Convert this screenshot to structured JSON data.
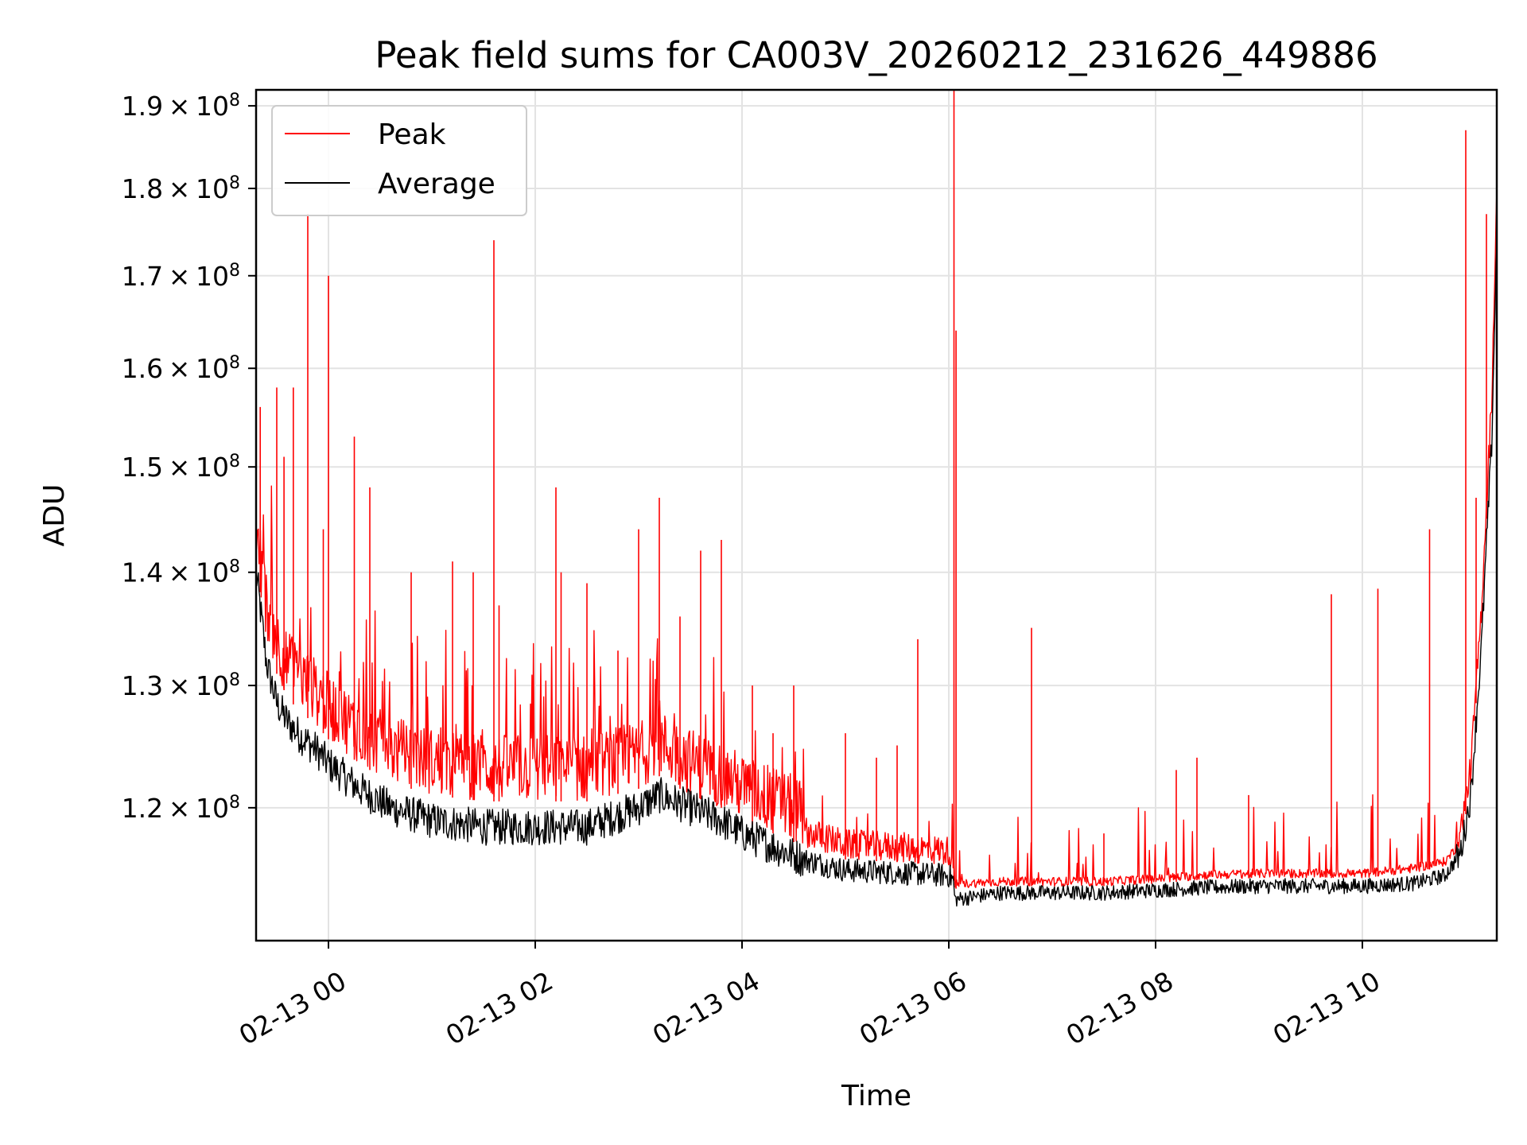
{
  "chart_data": {
    "type": "line",
    "title": "Peak field sums for CA003V_20260212_231626_449886",
    "xlabel": "Time",
    "ylabel": "ADU",
    "x_unit": "hours since 02-13 00:00",
    "xlim": [
      -0.7,
      11.3
    ],
    "ylim": [
      110000000.0,
      192000000.0
    ],
    "yscale": "log",
    "grid": true,
    "legend_position": "upper-left",
    "x_ticks": [
      {
        "value": 0,
        "label": "02-13 00"
      },
      {
        "value": 2,
        "label": "02-13 02"
      },
      {
        "value": 4,
        "label": "02-13 04"
      },
      {
        "value": 6,
        "label": "02-13 06"
      },
      {
        "value": 8,
        "label": "02-13 08"
      },
      {
        "value": 10,
        "label": "02-13 10"
      }
    ],
    "y_ticks": [
      {
        "value": 120000000.0,
        "mantissa": "1.2",
        "base": "10",
        "exp": "8"
      },
      {
        "value": 130000000.0,
        "mantissa": "1.3",
        "base": "10",
        "exp": "8"
      },
      {
        "value": 140000000.0,
        "mantissa": "1.4",
        "base": "10",
        "exp": "8"
      },
      {
        "value": 150000000.0,
        "mantissa": "1.5",
        "base": "10",
        "exp": "8"
      },
      {
        "value": 160000000.0,
        "mantissa": "1.6",
        "base": "10",
        "exp": "8"
      },
      {
        "value": 170000000.0,
        "mantissa": "1.7",
        "base": "10",
        "exp": "8"
      },
      {
        "value": 180000000.0,
        "mantissa": "1.8",
        "base": "10",
        "exp": "8"
      },
      {
        "value": 190000000.0,
        "mantissa": "1.9",
        "base": "10",
        "exp": "8"
      }
    ],
    "series": [
      {
        "name": "Peak",
        "color": "#ff0000",
        "baseline_x": [
          -0.7,
          -0.6,
          -0.5,
          -0.4,
          -0.3,
          -0.1,
          0.0,
          0.3,
          0.6,
          1.0,
          1.5,
          2.0,
          2.5,
          3.0,
          3.2,
          3.5,
          3.8,
          4.0,
          4.3,
          4.6,
          5.0,
          5.5,
          6.0,
          6.04,
          6.06,
          6.5,
          7.0,
          7.5,
          8.0,
          8.5,
          9.0,
          9.5,
          10.0,
          10.5,
          10.8,
          10.95,
          11.05,
          11.15,
          11.25,
          11.3
        ],
        "baseline_y": [
          141000000.0,
          134000000.0,
          131000000.0,
          129000000.0,
          128000000.0,
          126500000.0,
          125500000.0,
          123500000.0,
          122000000.0,
          121000000.0,
          120500000.0,
          120500000.0,
          120500000.0,
          121500000.0,
          122500000.0,
          121000000.0,
          120000000.0,
          119000000.0,
          118000000.0,
          117000000.0,
          116000000.0,
          115800000.0,
          115500000.0,
          115000000.0,
          113800000.0,
          114000000.0,
          114000000.0,
          114000000.0,
          114200000.0,
          114500000.0,
          114600000.0,
          114600000.0,
          114600000.0,
          115000000.0,
          115500000.0,
          117000000.0,
          122000000.0,
          135000000.0,
          155000000.0,
          177000000.0
        ],
        "spikes_x": [
          -0.66,
          -0.5,
          -0.43,
          -0.34,
          -0.2,
          -0.05,
          0.0,
          0.25,
          0.4,
          0.8,
          1.2,
          1.4,
          1.6,
          1.65,
          2.2,
          2.25,
          2.5,
          2.8,
          3.0,
          3.2,
          3.4,
          3.6,
          3.8,
          4.1,
          4.3,
          4.5,
          5.0,
          5.3,
          5.5,
          5.7,
          6.05,
          6.07,
          6.8,
          7.5,
          8.2,
          8.4,
          8.9,
          9.7,
          10.15,
          10.65,
          11.0,
          11.1,
          11.2
        ],
        "spikes_y": [
          156000000.0,
          158000000.0,
          151000000.0,
          158000000.0,
          177000000.0,
          144000000.0,
          170000000.0,
          153000000.0,
          148000000.0,
          140000000.0,
          141000000.0,
          140000000.0,
          174000000.0,
          137000000.0,
          148000000.0,
          140000000.0,
          139000000.0,
          133000000.0,
          144000000.0,
          147000000.0,
          136000000.0,
          142000000.0,
          143000000.0,
          130000000.0,
          126000000.0,
          130000000.0,
          126000000.0,
          124000000.0,
          125000000.0,
          134000000.0,
          192000000.0,
          164000000.0,
          135000000.0,
          118000000.0,
          123000000.0,
          124000000.0,
          121000000.0,
          138000000.0,
          138500000.0,
          144000000.0,
          187000000.0,
          147000000.0,
          177000000.0
        ]
      },
      {
        "name": "Average",
        "color": "#000000",
        "baseline_x": [
          -0.7,
          -0.6,
          -0.5,
          -0.4,
          -0.3,
          -0.1,
          0.0,
          0.3,
          0.6,
          1.0,
          1.5,
          2.0,
          2.5,
          3.0,
          3.2,
          3.5,
          3.8,
          4.0,
          4.3,
          4.6,
          5.0,
          5.5,
          6.0,
          6.04,
          6.06,
          6.5,
          7.0,
          7.5,
          8.0,
          8.5,
          9.0,
          9.5,
          10.0,
          10.5,
          10.8,
          10.95,
          11.05,
          11.15,
          11.25,
          11.3
        ],
        "baseline_y": [
          140000000.0,
          132000000.0,
          128500000.0,
          127000000.0,
          126000000.0,
          124500000.0,
          123500000.0,
          121500000.0,
          120000000.0,
          119000000.0,
          118500000.0,
          118500000.0,
          118500000.0,
          120000000.0,
          121000000.0,
          120000000.0,
          119000000.0,
          118000000.0,
          117000000.0,
          116000000.0,
          115200000.0,
          115000000.0,
          114800000.0,
          114500000.0,
          113000000.0,
          113500000.0,
          113500000.0,
          113500000.0,
          113700000.0,
          113900000.0,
          114000000.0,
          114000000.0,
          114000000.0,
          114200000.0,
          114800000.0,
          116500000.0,
          121000000.0,
          133000000.0,
          152000000.0,
          174000000.0
        ]
      }
    ]
  }
}
